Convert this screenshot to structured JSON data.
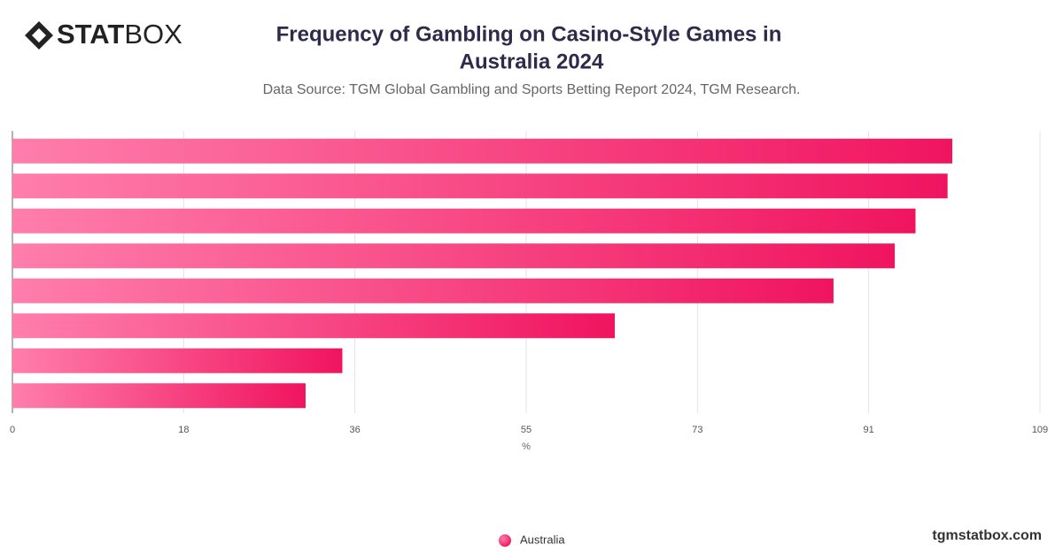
{
  "brand": {
    "bold": "STAT",
    "light": "BOX"
  },
  "footer": "tgmstatbox.com",
  "chart_data": {
    "type": "hbar",
    "title": [
      "Frequency of Gambling on Casino-Style Games in",
      "Australia 2024"
    ],
    "subtitle": "Data Source: TGM Global Gambling and Sports Betting Report 2024, TGM Research.",
    "x_label": "%",
    "categories": [
      null,
      null,
      null,
      null,
      null,
      null,
      null,
      null
    ],
    "series": [
      {
        "name": "Australia",
        "color": "#f0145f",
        "gradient": [
          "#ff7eab",
          "#f0145f"
        ],
        "values": [
          99.7,
          99.2,
          95.8,
          93.6,
          87.1,
          63.9,
          35.0,
          31.1
        ]
      }
    ],
    "xlim": [
      0,
      109
    ],
    "xticks": [
      0,
      {
        "value": 18.17,
        "label": "18"
      },
      {
        "value": 36.33,
        "label": "36"
      },
      {
        "value": 54.5,
        "label": "55"
      },
      {
        "value": 72.67,
        "label": "73"
      },
      {
        "value": 90.83,
        "label": "91"
      },
      109
    ],
    "grid": true,
    "legend": "bottom"
  }
}
